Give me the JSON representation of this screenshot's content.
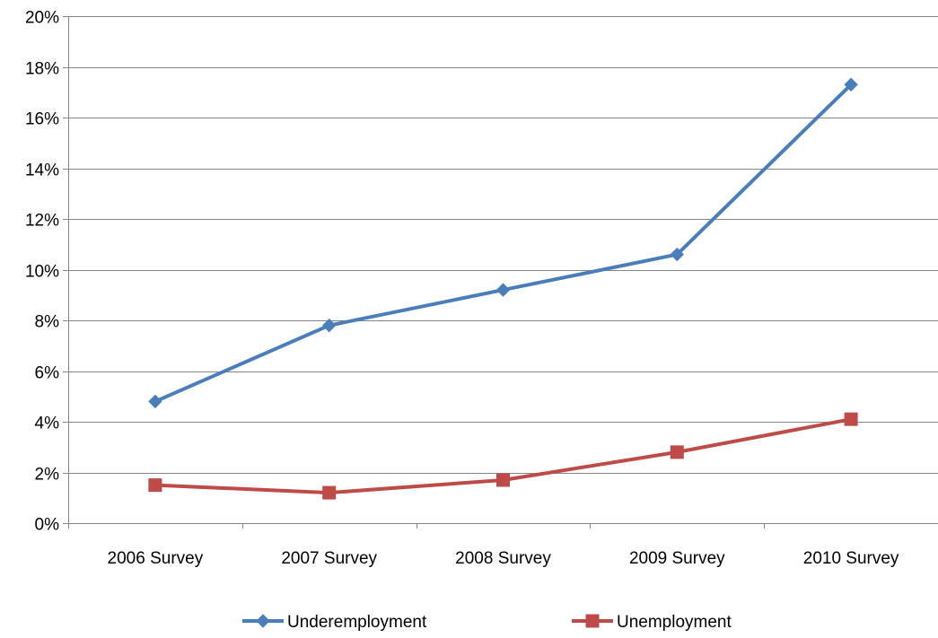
{
  "chart_data": {
    "type": "line",
    "title": "",
    "xlabel": "",
    "ylabel": "",
    "categories": [
      "2006 Survey",
      "2007 Survey",
      "2008 Survey",
      "2009 Survey",
      "2010 Survey"
    ],
    "ylim": [
      0,
      20
    ],
    "yticks": [
      0,
      2,
      4,
      6,
      8,
      10,
      12,
      14,
      16,
      18,
      20
    ],
    "ytick_labels": [
      "0%",
      "2%",
      "4%",
      "6%",
      "8%",
      "10%",
      "12%",
      "14%",
      "16%",
      "18%",
      "20%"
    ],
    "grid": true,
    "legend_position": "bottom",
    "series": [
      {
        "name": "Underemployment",
        "values": [
          4.8,
          7.8,
          9.2,
          10.6,
          17.3
        ],
        "color": "#4a7ebb",
        "marker": "diamond"
      },
      {
        "name": "Unemployment",
        "values": [
          1.5,
          1.2,
          1.7,
          2.8,
          4.1
        ],
        "color": "#be4b48",
        "marker": "square"
      }
    ]
  }
}
